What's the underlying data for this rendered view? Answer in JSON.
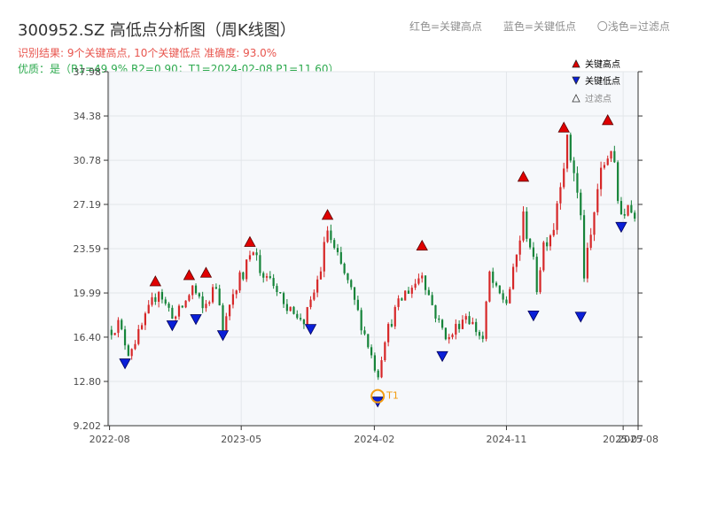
{
  "header": {
    "title": "300952.SZ 高低点分析图（周K线图）",
    "result_line": "识别结果: 9个关键高点, 10个关键低点   准确度: 93.0%",
    "quality_line": "优质：是（R1=49.9%  R2=0.90；T1=2024-02-08 P1=11.60）",
    "legend_high": "红色=关键高点",
    "legend_low": "蓝色=关键低点",
    "legend_filtered": "〇浅色=过滤点"
  },
  "colors": {
    "up": "#d62728",
    "down": "#16843a",
    "high_marker": "#e00000",
    "low_marker": "#0a1fd8",
    "t1_marker": "#f39c12",
    "plot_bg": "#f6f8fb"
  },
  "chart_data": {
    "type": "candlestick",
    "x_ticks": [
      "2022-08",
      "2023-05",
      "2024-02",
      "2024-11",
      "2025-07",
      "2025-08"
    ],
    "y_ticks": [
      "9.202",
      "12.80",
      "16.40",
      "19.99",
      "23.59",
      "27.19",
      "30.78",
      "34.38",
      "37.98"
    ],
    "ylim": [
      9.202,
      37.98
    ],
    "xlim": [
      "2022-07-29",
      "2025-08-01"
    ],
    "grid": true,
    "legend": {
      "placement": "top-right",
      "entries": [
        {
          "label": "关键高点",
          "marker": "triangle-up",
          "color": "#e00000"
        },
        {
          "label": "关键低点",
          "marker": "triangle-down",
          "color": "#0a1fd8"
        },
        {
          "label": "过滤点",
          "marker": "triangle-up-hollow",
          "color": "#888888"
        }
      ]
    },
    "anchors": [
      [
        "2022-08-05",
        17.0
      ],
      [
        "2022-08-19",
        17.5
      ],
      [
        "2022-09-09",
        15.2
      ],
      [
        "2022-09-30",
        16.6
      ],
      [
        "2022-10-21",
        18.5
      ],
      [
        "2022-11-11",
        20.4
      ],
      [
        "2022-11-25",
        19.0
      ],
      [
        "2022-12-16",
        18.0
      ],
      [
        "2023-01-06",
        19.3
      ],
      [
        "2023-01-20",
        20.5
      ],
      [
        "2023-02-10",
        18.6
      ],
      [
        "2023-02-24",
        19.6
      ],
      [
        "2023-03-10",
        20.6
      ],
      [
        "2023-03-24",
        17.5
      ],
      [
        "2023-04-07",
        18.8
      ],
      [
        "2023-04-21",
        20.4
      ],
      [
        "2023-05-12",
        22.3
      ],
      [
        "2023-05-26",
        23.0
      ],
      [
        "2023-06-16",
        21.5
      ],
      [
        "2023-07-14",
        19.8
      ],
      [
        "2023-08-11",
        18.8
      ],
      [
        "2023-09-08",
        17.7
      ],
      [
        "2023-09-22",
        19.0
      ],
      [
        "2023-10-13",
        22.0
      ],
      [
        "2023-10-27",
        25.2
      ],
      [
        "2023-11-10",
        23.3
      ],
      [
        "2023-12-01",
        21.5
      ],
      [
        "2023-12-22",
        19.2
      ],
      [
        "2024-01-05",
        17.5
      ],
      [
        "2024-01-19",
        15.8
      ],
      [
        "2024-02-08",
        13.2
      ],
      [
        "2024-02-23",
        16.4
      ],
      [
        "2024-03-15",
        18.5
      ],
      [
        "2024-04-05",
        20.0
      ],
      [
        "2024-04-26",
        20.8
      ],
      [
        "2024-05-10",
        21.8
      ],
      [
        "2024-05-24",
        19.8
      ],
      [
        "2024-06-14",
        17.5
      ],
      [
        "2024-07-05",
        16.2
      ],
      [
        "2024-07-19",
        17.2
      ],
      [
        "2024-08-09",
        18.3
      ],
      [
        "2024-08-30",
        17.0
      ],
      [
        "2024-09-13",
        16.2
      ],
      [
        "2024-09-27",
        21.5
      ],
      [
        "2024-10-11",
        20.0
      ],
      [
        "2024-11-01",
        19.3
      ],
      [
        "2024-11-15",
        21.5
      ],
      [
        "2024-12-06",
        26.0
      ],
      [
        "2024-12-20",
        24.0
      ],
      [
        "2025-01-03",
        20.5
      ],
      [
        "2025-01-17",
        24.0
      ],
      [
        "2025-02-07",
        25.5
      ],
      [
        "2025-02-21",
        29.5
      ],
      [
        "2025-03-07",
        32.0
      ],
      [
        "2025-03-21",
        30.0
      ],
      [
        "2025-04-04",
        26.0
      ],
      [
        "2025-04-11",
        21.5
      ],
      [
        "2025-04-25",
        24.5
      ],
      [
        "2025-05-09",
        28.5
      ],
      [
        "2025-05-23",
        30.5
      ],
      [
        "2025-06-06",
        32.0
      ],
      [
        "2025-06-20",
        27.5
      ],
      [
        "2025-07-04",
        26.5
      ],
      [
        "2025-07-25",
        26.8
      ]
    ],
    "key_highs": [
      {
        "date": "2022-11-04",
        "value": 20.5
      },
      {
        "date": "2023-01-13",
        "value": 21.0
      },
      {
        "date": "2023-02-17",
        "value": 21.2
      },
      {
        "date": "2023-05-19",
        "value": 23.7
      },
      {
        "date": "2023-10-27",
        "value": 25.9
      },
      {
        "date": "2024-05-10",
        "value": 23.4
      },
      {
        "date": "2024-12-06",
        "value": 29.0
      },
      {
        "date": "2025-02-28",
        "value": 33.0
      },
      {
        "date": "2025-05-30",
        "value": 33.6
      }
    ],
    "key_lows": [
      {
        "date": "2022-09-02",
        "value": 14.7
      },
      {
        "date": "2022-12-09",
        "value": 17.8
      },
      {
        "date": "2023-01-27",
        "value": 18.3
      },
      {
        "date": "2023-03-24",
        "value": 17.0
      },
      {
        "date": "2023-09-22",
        "value": 17.5
      },
      {
        "date": "2024-02-08",
        "value": 11.6
      },
      {
        "date": "2024-06-21",
        "value": 15.3
      },
      {
        "date": "2024-12-27",
        "value": 18.6
      },
      {
        "date": "2025-04-04",
        "value": 18.5
      },
      {
        "date": "2025-06-27",
        "value": 25.8
      }
    ],
    "t1": {
      "label": "T1",
      "date": "2024-02-08",
      "value": 11.6
    }
  }
}
